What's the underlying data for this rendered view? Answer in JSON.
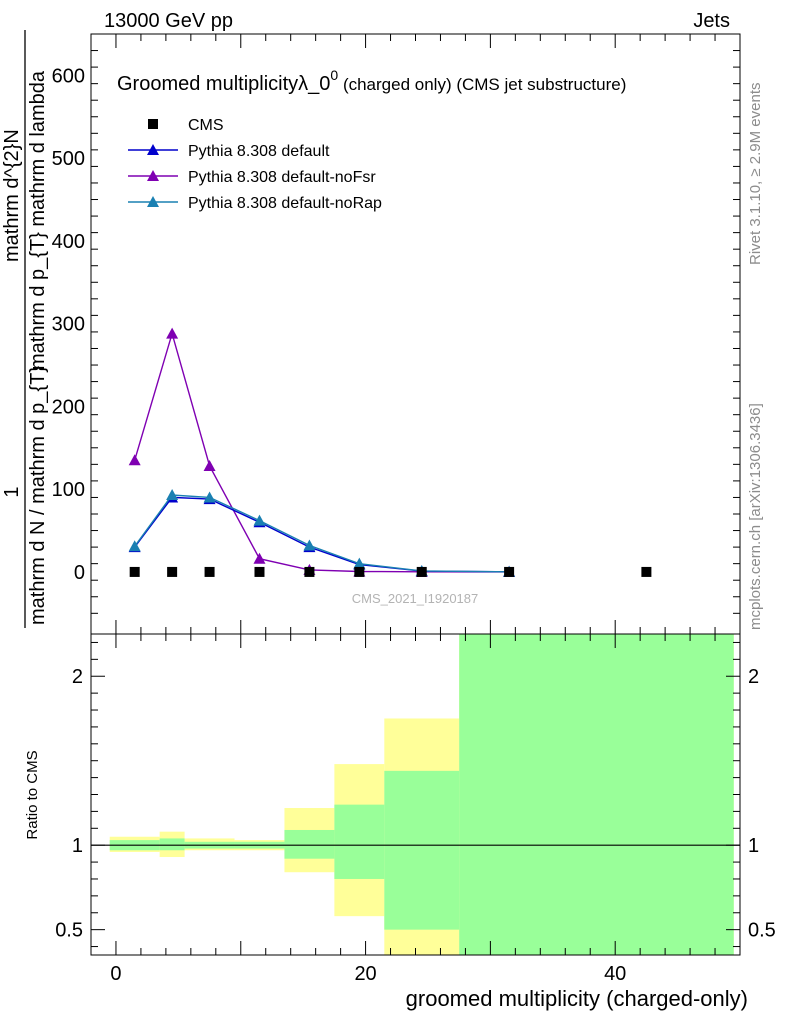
{
  "header": {
    "energy_label": "13000 GeV pp",
    "category_label": "Jets"
  },
  "side_labels": {
    "rivet": "Rivet 3.1.10, ≥ 2.9M events",
    "mcplots": "mcplots.cern.ch [arXiv:1306.3436]"
  },
  "watermark": "CMS_2021_I1920187",
  "colors": {
    "data": "#000000",
    "default": "#0000cc",
    "noFsr": "#7f00b2",
    "noRap": "#1a80b2",
    "band_inner": "#99ff99",
    "band_outer": "#ffff99"
  },
  "chart_data": [
    {
      "type": "line",
      "title": "Groomed multiplicityλ_0",
      "title_sup": "0",
      "title_suffix": " (charged only) (CMS jet substructure)",
      "ylabel_numerator": "mathrm d^{2}N",
      "ylabel_denominator": "mathrm d p_{T} mathrm d lambda",
      "ylabel_prefix_num": "1",
      "ylabel_prefix_den": "mathrm d N / mathrm d p_{T}",
      "ylim": [
        -75,
        650
      ],
      "xlim": [
        -2,
        50
      ],
      "yticks": [
        0,
        100,
        200,
        300,
        400,
        500,
        600
      ],
      "legend_position": "top-left",
      "series": [
        {
          "name": "CMS",
          "marker": "square",
          "x": [
            1.5,
            4.5,
            7.5,
            11.5,
            15.5,
            19.5,
            24.5,
            31.5,
            42.5
          ],
          "y": [
            0,
            0,
            0,
            0,
            0,
            0,
            0,
            0,
            0
          ]
        },
        {
          "name": "Pythia 8.308 default",
          "marker": "triangle",
          "x": [
            1.5,
            4.5,
            7.5,
            11.5,
            15.5,
            19.5,
            24.5,
            31.5
          ],
          "y": [
            30,
            90,
            88,
            60,
            30,
            9,
            1,
            0.2
          ]
        },
        {
          "name": "Pythia 8.308 default-noFsr",
          "marker": "triangle",
          "x": [
            1.5,
            4.5,
            7.5,
            11.5,
            15.5,
            19.5,
            24.5,
            31.5
          ],
          "y": [
            135,
            288,
            128,
            16,
            2.5,
            0.5,
            0.1,
            0
          ]
        },
        {
          "name": "Pythia 8.308 default-noRap",
          "marker": "triangle",
          "x": [
            1.5,
            4.5,
            7.5,
            11.5,
            15.5,
            19.5,
            24.5,
            31.5
          ],
          "y": [
            31,
            93,
            90,
            62,
            32,
            10,
            1.2,
            0.2
          ]
        }
      ]
    },
    {
      "type": "area",
      "ylabel": "Ratio to CMS",
      "xlabel": "groomed multiplicity (charged-only)",
      "ylim": [
        0.35,
        2.25
      ],
      "xlim": [
        -2,
        50
      ],
      "xticks": [
        0,
        20,
        40
      ],
      "yticks": [
        0.5,
        1,
        2
      ],
      "bins": [
        {
          "lo": -0.5,
          "hi": 3.5,
          "inner": [
            0.97,
            1.03
          ],
          "outer": [
            0.96,
            1.05
          ]
        },
        {
          "lo": 3.5,
          "hi": 5.5,
          "inner": [
            0.97,
            1.04
          ],
          "outer": [
            0.93,
            1.08
          ]
        },
        {
          "lo": 5.5,
          "hi": 9.5,
          "inner": [
            0.98,
            1.02
          ],
          "outer": [
            0.97,
            1.04
          ]
        },
        {
          "lo": 9.5,
          "hi": 13.5,
          "inner": [
            0.98,
            1.02
          ],
          "outer": [
            0.97,
            1.03
          ]
        },
        {
          "lo": 13.5,
          "hi": 17.5,
          "inner": [
            0.92,
            1.09
          ],
          "outer": [
            0.84,
            1.22
          ]
        },
        {
          "lo": 17.5,
          "hi": 21.5,
          "inner": [
            0.8,
            1.24
          ],
          "outer": [
            0.58,
            1.48
          ]
        },
        {
          "lo": 21.5,
          "hi": 27.5,
          "inner": [
            0.5,
            1.44
          ],
          "outer": [
            0.35,
            1.75
          ]
        },
        {
          "lo": 27.5,
          "hi": 49.5,
          "inner": [
            0.35,
            2.25
          ],
          "outer": [
            0.35,
            2.25
          ]
        }
      ]
    }
  ]
}
